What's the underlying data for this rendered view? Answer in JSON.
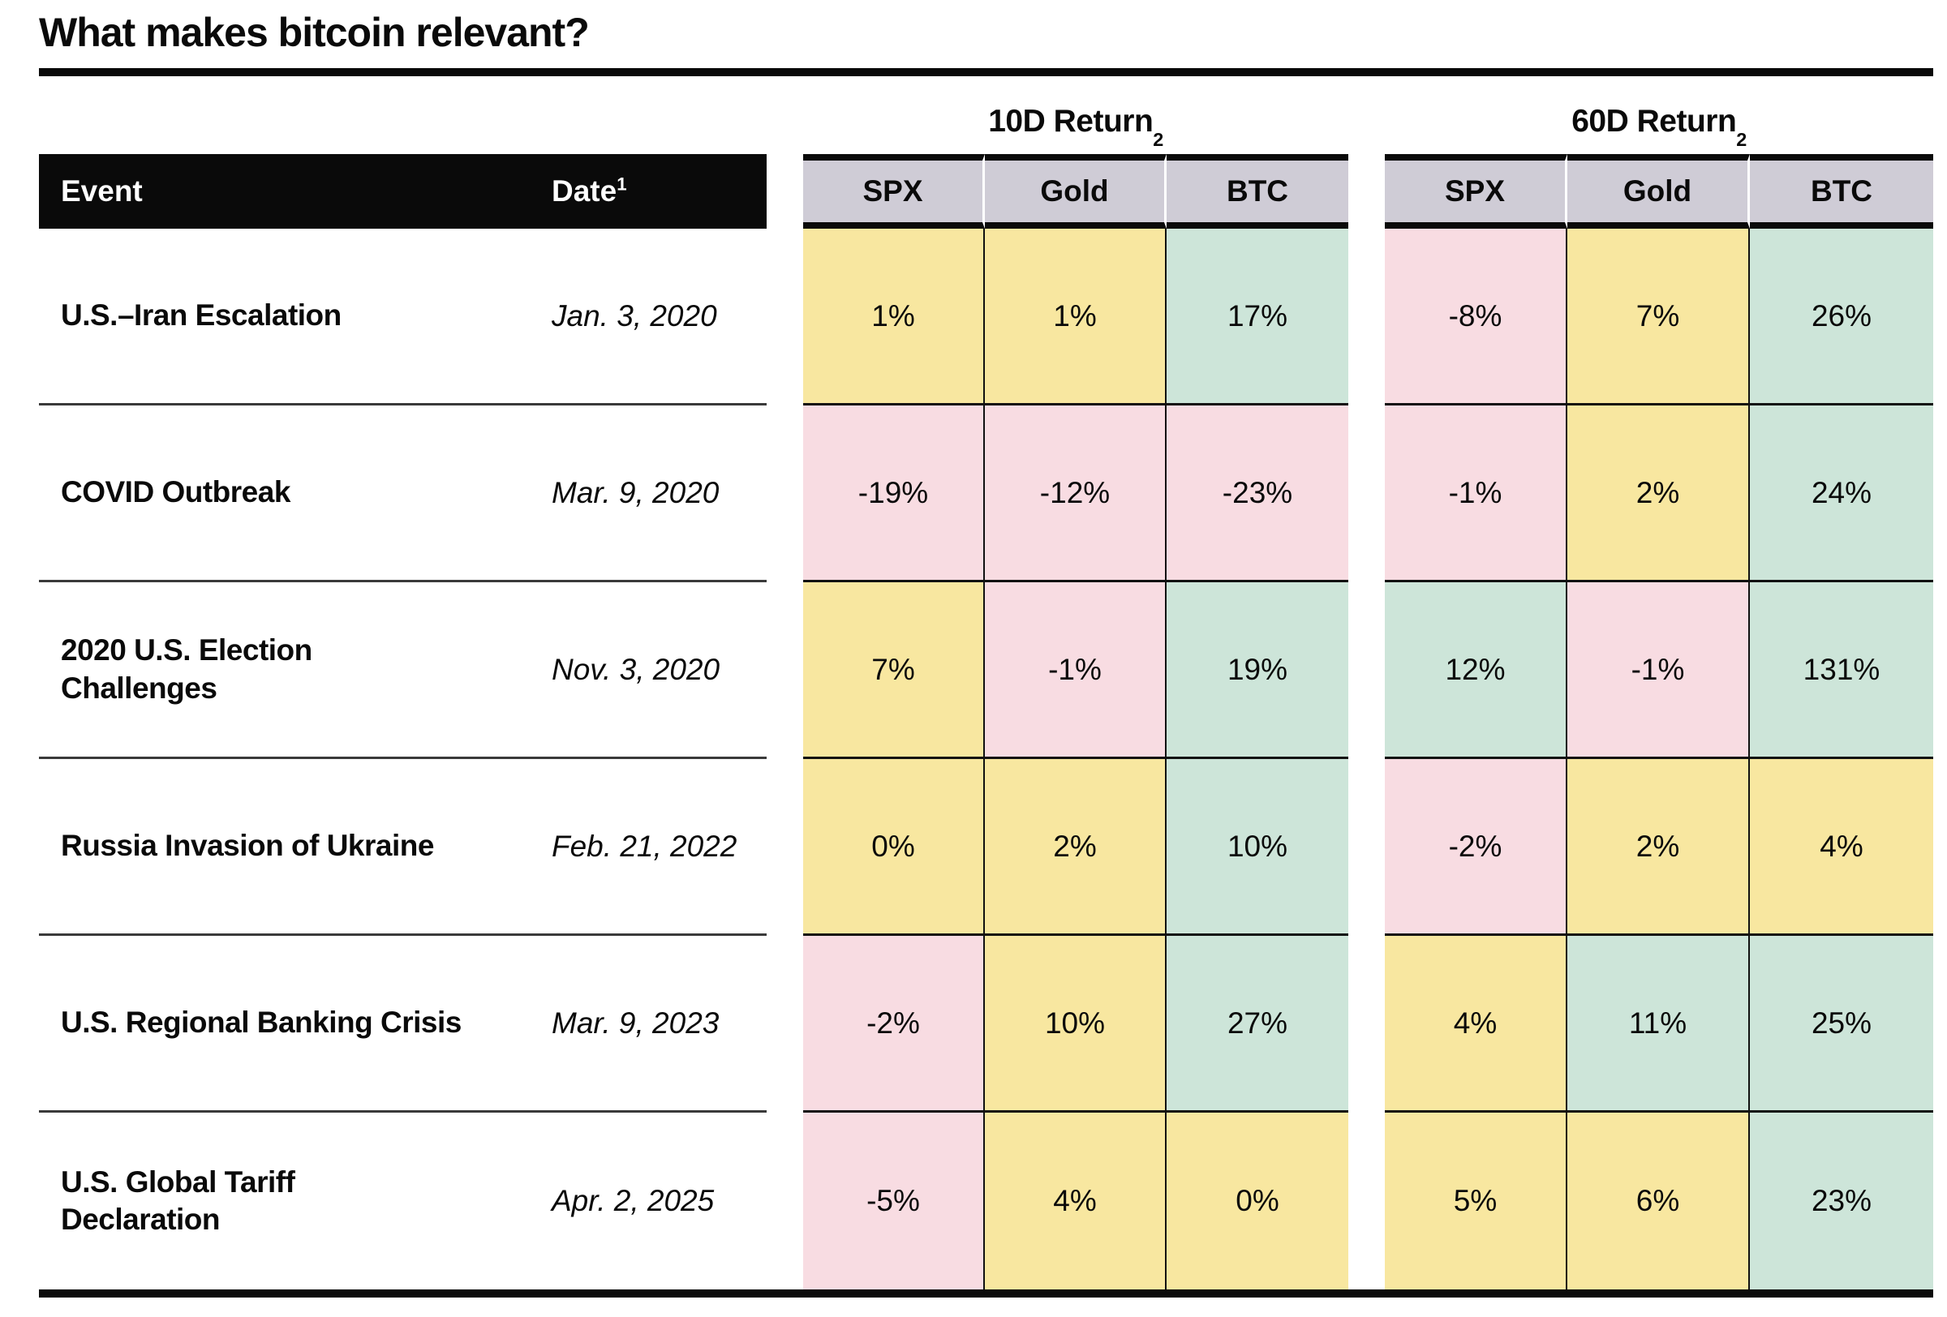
{
  "title": "What makes bitcoin relevant?",
  "colors": {
    "cell_neutral": "#F8E7A0",
    "cell_negative": "#F8DCE2",
    "cell_positive": "#CDE5D9",
    "header_bg": "#CFCCD6",
    "bar_bg": "#0A0A0A",
    "bar_text": "#FFFFFF"
  },
  "table": {
    "left_header": {
      "event": "Event",
      "date": "Date",
      "date_sup": "1"
    },
    "groups": [
      {
        "title": "10D Return",
        "sup": "2",
        "columns": [
          "SPX",
          "Gold",
          "BTC"
        ]
      },
      {
        "title": "60D Return",
        "sup": "2",
        "columns": [
          "SPX",
          "Gold",
          "BTC"
        ]
      }
    ],
    "rows": [
      {
        "event": "U.S.–Iran Escalation",
        "date": "Jan. 3, 2020",
        "ret10": [
          {
            "value": "1%",
            "tone": "neutral"
          },
          {
            "value": "1%",
            "tone": "neutral"
          },
          {
            "value": "17%",
            "tone": "positive"
          }
        ],
        "ret60": [
          {
            "value": "-8%",
            "tone": "negative"
          },
          {
            "value": "7%",
            "tone": "neutral"
          },
          {
            "value": "26%",
            "tone": "positive"
          }
        ]
      },
      {
        "event": "COVID Outbreak",
        "date": "Mar. 9, 2020",
        "ret10": [
          {
            "value": "-19%",
            "tone": "negative"
          },
          {
            "value": "-12%",
            "tone": "negative"
          },
          {
            "value": "-23%",
            "tone": "negative"
          }
        ],
        "ret60": [
          {
            "value": "-1%",
            "tone": "negative"
          },
          {
            "value": "2%",
            "tone": "neutral"
          },
          {
            "value": "24%",
            "tone": "positive"
          }
        ]
      },
      {
        "event": "2020 U.S. Election\nChallenges",
        "date": "Nov. 3, 2020",
        "ret10": [
          {
            "value": "7%",
            "tone": "neutral"
          },
          {
            "value": "-1%",
            "tone": "negative"
          },
          {
            "value": "19%",
            "tone": "positive"
          }
        ],
        "ret60": [
          {
            "value": "12%",
            "tone": "positive"
          },
          {
            "value": "-1%",
            "tone": "negative"
          },
          {
            "value": "131%",
            "tone": "positive"
          }
        ]
      },
      {
        "event": "Russia Invasion of Ukraine",
        "date": "Feb. 21, 2022",
        "ret10": [
          {
            "value": "0%",
            "tone": "neutral"
          },
          {
            "value": "2%",
            "tone": "neutral"
          },
          {
            "value": "10%",
            "tone": "positive"
          }
        ],
        "ret60": [
          {
            "value": "-2%",
            "tone": "negative"
          },
          {
            "value": "2%",
            "tone": "neutral"
          },
          {
            "value": "4%",
            "tone": "neutral"
          }
        ]
      },
      {
        "event": "U.S. Regional Banking Crisis",
        "date": "Mar. 9, 2023",
        "ret10": [
          {
            "value": "-2%",
            "tone": "negative"
          },
          {
            "value": "10%",
            "tone": "neutral"
          },
          {
            "value": "27%",
            "tone": "positive"
          }
        ],
        "ret60": [
          {
            "value": "4%",
            "tone": "neutral"
          },
          {
            "value": "11%",
            "tone": "positive"
          },
          {
            "value": "25%",
            "tone": "positive"
          }
        ]
      },
      {
        "event": "U.S. Global Tariff\nDeclaration",
        "date": "Apr. 2, 2025",
        "ret10": [
          {
            "value": "-5%",
            "tone": "negative"
          },
          {
            "value": "4%",
            "tone": "neutral"
          },
          {
            "value": "0%",
            "tone": "neutral"
          }
        ],
        "ret60": [
          {
            "value": "5%",
            "tone": "neutral"
          },
          {
            "value": "6%",
            "tone": "neutral"
          },
          {
            "value": "23%",
            "tone": "positive"
          }
        ]
      }
    ]
  },
  "chart_data": {
    "type": "table",
    "title": "What makes bitcoin relevant?",
    "column_groups": [
      "10D Return",
      "60D Return"
    ],
    "columns": [
      "Event",
      "Date",
      "10D SPX",
      "10D Gold",
      "10D BTC",
      "60D SPX",
      "60D Gold",
      "60D BTC"
    ],
    "rows": [
      [
        "U.S.–Iran Escalation",
        "Jan. 3, 2020",
        "1%",
        "1%",
        "17%",
        "-8%",
        "7%",
        "26%"
      ],
      [
        "COVID Outbreak",
        "Mar. 9, 2020",
        "-19%",
        "-12%",
        "-23%",
        "-1%",
        "2%",
        "24%"
      ],
      [
        "2020 U.S. Election Challenges",
        "Nov. 3, 2020",
        "7%",
        "-1%",
        "19%",
        "12%",
        "-1%",
        "131%"
      ],
      [
        "Russia Invasion of Ukraine",
        "Feb. 21, 2022",
        "0%",
        "2%",
        "10%",
        "-2%",
        "2%",
        "4%"
      ],
      [
        "U.S. Regional Banking Crisis",
        "Mar. 9, 2023",
        "-2%",
        "10%",
        "27%",
        "4%",
        "11%",
        "25%"
      ],
      [
        "U.S. Global Tariff Declaration",
        "Apr. 2, 2025",
        "-5%",
        "4%",
        "0%",
        "5%",
        "6%",
        "23%"
      ]
    ],
    "notes": "Cell colors: yellow = neutral/flat return, pink = negative return, green = strong positive return. Footnote markers: Date has superscript 1, 10D/60D Return have superscript 2."
  }
}
